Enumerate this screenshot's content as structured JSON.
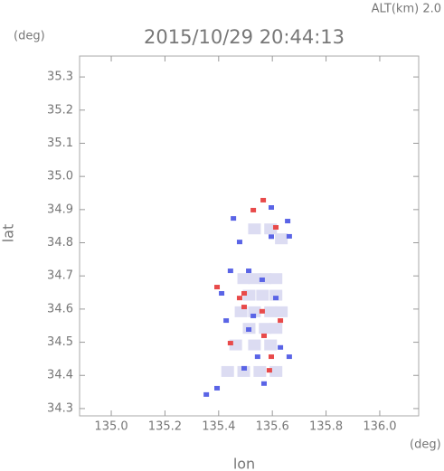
{
  "header": {
    "altitude_label": "ALT(km) 2.0",
    "y_unit": "(deg)",
    "x_unit": "(deg)"
  },
  "chart_data": {
    "type": "scatter",
    "title": "2015/10/29 20:44:13",
    "xlabel": "lon",
    "ylabel": "lat",
    "xlim": [
      134.882,
      136.145
    ],
    "ylim": [
      34.278,
      35.363
    ],
    "xticks": [
      {
        "value": 135,
        "label": "135.0"
      },
      135.2,
      135.4,
      135.6,
      135.8,
      {
        "value": 136,
        "label": "136.0"
      }
    ],
    "yticks": [
      34.3,
      34.4,
      34.5,
      34.6,
      34.7,
      34.8,
      34.9,
      {
        "value": 35,
        "label": "35.0"
      },
      35.1,
      35.2,
      35.3
    ],
    "series": [
      {
        "color": "#dcdcf2",
        "x": [
          135.48,
          135.52,
          135.56,
          135.6,
          135.5,
          135.55,
          135.6,
          135.47,
          135.52,
          135.58,
          135.62,
          135.5,
          135.56,
          135.6,
          135.45,
          135.52,
          135.58,
          135.42,
          135.48,
          135.54,
          135.6,
          135.52,
          135.58,
          135.62
        ],
        "values": [
          34.7,
          34.7,
          34.7,
          34.7,
          34.65,
          34.65,
          34.65,
          34.6,
          34.6,
          34.6,
          34.6,
          34.55,
          34.55,
          34.55,
          34.5,
          34.5,
          34.5,
          34.42,
          34.42,
          34.42,
          34.42,
          34.85,
          34.85,
          34.82
        ]
      },
      {
        "color": "#e84a4a",
        "x": [
          135.566,
          135.478,
          135.495,
          135.562,
          135.444,
          135.596,
          135.589,
          135.495,
          135.394,
          135.63,
          135.569,
          135.529,
          135.613
        ],
        "values": [
          34.927,
          34.632,
          34.605,
          34.592,
          34.496,
          34.455,
          34.414,
          34.646,
          34.665,
          34.564,
          34.518,
          34.897,
          34.845
        ]
      },
      {
        "color": "#5a64e6",
        "x": [
          135.455,
          135.596,
          135.657,
          135.512,
          135.562,
          135.428,
          135.512,
          135.63,
          135.495,
          135.394,
          135.354,
          135.569,
          135.596,
          135.478,
          135.663,
          135.613,
          135.444,
          135.529,
          135.411,
          135.663,
          135.545
        ],
        "values": [
          34.872,
          34.905,
          34.864,
          34.714,
          34.687,
          34.564,
          34.537,
          34.483,
          34.42,
          34.36,
          34.341,
          34.374,
          34.817,
          34.801,
          34.818,
          34.632,
          34.714,
          34.578,
          34.646,
          34.455,
          34.455
        ]
      }
    ]
  }
}
